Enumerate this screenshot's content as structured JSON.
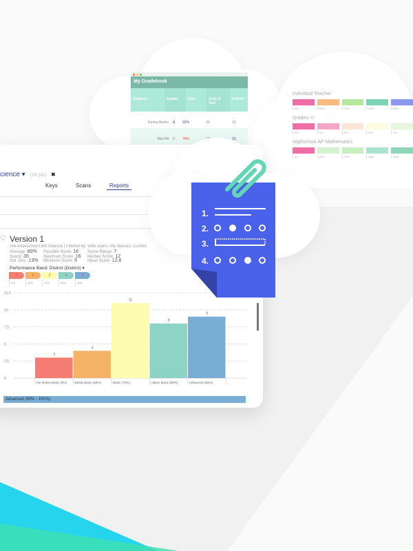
{
  "gradebook": {
    "title": "My Gradebook",
    "columns": [
      "Students",
      "Grades",
      "Quiz",
      "Chpt. 6 Test",
      "6 Revie"
    ],
    "rows": [
      {
        "student": "Emma Banks",
        "grade": "A",
        "pct": "92%",
        "quiz": "20",
        "test": "15"
      },
      {
        "student": "Mia Hill",
        "grade": "C",
        "pct": "79%",
        "quiz": "13",
        "test": "15"
      }
    ]
  },
  "scales": [
    {
      "label": "Individual Teacher",
      "bands": [
        {
          "color": "#f06ea6",
          "pct": "0%"
        },
        {
          "color": "#f9bb7e",
          "pct": "60%"
        },
        {
          "color": "#b5e89f",
          "pct": "70%"
        },
        {
          "color": "#7fd3b9",
          "pct": "80%"
        },
        {
          "color": "#8b98ee",
          "pct": "90%"
        }
      ]
    },
    {
      "label": "Grades +/-",
      "bands": [
        {
          "color": "#f06ea6",
          "pct": "0%"
        },
        {
          "color": "#f5a6c9",
          "pct": "1%"
        },
        {
          "color": "#fde6d4",
          "pct": "3%"
        },
        {
          "color": "#fdfbe0",
          "pct": "5%"
        },
        {
          "color": "#e5f6dc",
          "pct": "7%"
        }
      ]
    },
    {
      "label": "Highschool AP Mathematics",
      "bands": [
        {
          "color": "#f06ea6",
          "pct": "0%"
        },
        {
          "color": "#d6f3cf",
          "pct": "60%"
        },
        {
          "color": "#c6eec0",
          "pct": "70%"
        },
        {
          "color": "#ace3cf",
          "pct": "80%"
        },
        {
          "color": "#8fd6b9",
          "pct": "90%"
        }
      ]
    }
  ],
  "report": {
    "subject": "cience",
    "points": "(16 pts)",
    "close": "✖",
    "tabs": [
      "Keys",
      "Scans",
      "Reports"
    ],
    "active_tab": "Reports",
    "version": "Version 1",
    "subtitle": "Pre-Assessment 6th Science | Filtered by: With scans, My classes, Current",
    "stats": [
      [
        "Average:",
        "80%"
      ],
      [
        "Scans:",
        "35"
      ],
      [
        "Std. Dev.:",
        "13%"
      ],
      [
        "Possible Score:",
        "16"
      ],
      [
        "Maximum Score:",
        "16"
      ],
      [
        "Minimum Score:",
        "9"
      ],
      [
        "Score Range:",
        "7"
      ],
      [
        "Median Score:",
        "12"
      ],
      [
        "Mean Score:",
        "12.8"
      ]
    ],
    "band_title": "Performance Band: District (District) ▾",
    "bands": [
      {
        "n": "1",
        "pct": "0%",
        "color": "#f47c73"
      },
      {
        "n": "2",
        "pct": "60%",
        "color": "#f5b368"
      },
      {
        "n": "3",
        "pct": "70%",
        "color": "#fdfcb1"
      },
      {
        "n": "4",
        "pct": "80%",
        "color": "#8dd3c6"
      },
      {
        "n": "5",
        "pct": "90%",
        "color": "#7aadd3"
      }
    ],
    "footer_band": "Advanced (90% - 100%)"
  },
  "chart_data": {
    "type": "bar",
    "categories": [
      "Far Below Basic (0%)",
      "Below Basic (60%)",
      "Basic (70%)",
      "Above Basic (80%)",
      "Advanced (90%)"
    ],
    "values": [
      3,
      4,
      11,
      8,
      9
    ],
    "colors": [
      "#f47c73",
      "#f5b368",
      "#fdfcb1",
      "#8dd3c6",
      "#7aadd3"
    ],
    "ylim": [
      0,
      12.5
    ],
    "yticks": [
      "0",
      "2.5",
      "5",
      "7.5",
      "10",
      "12.5"
    ],
    "grid": true
  },
  "note": {
    "items": [
      "1.",
      "2.",
      "3.",
      "4."
    ],
    "color": "#4a62ea",
    "clip_color": "#62d6b5"
  }
}
